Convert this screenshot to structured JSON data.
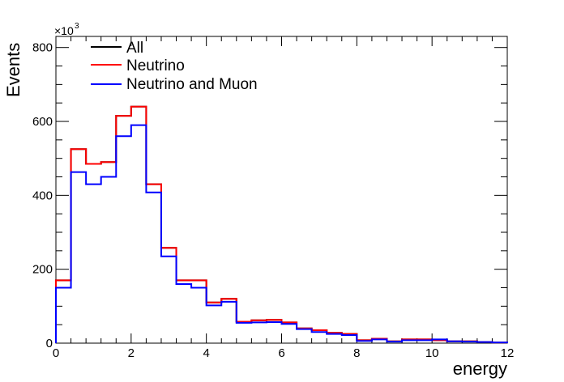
{
  "chart_data": {
    "type": "line",
    "style": "step-histogram",
    "xlabel": "energy",
    "ylabel": "Events",
    "xlim": [
      0,
      12
    ],
    "ylim": [
      0,
      830
    ],
    "y_multiplier_label": "×10",
    "y_multiplier_exponent": "3",
    "x_ticks": [
      "0",
      "2",
      "4",
      "6",
      "8",
      "10",
      "12"
    ],
    "y_ticks": [
      "0",
      "200",
      "400",
      "600",
      "800"
    ],
    "x_tick_values": [
      0,
      2,
      4,
      6,
      8,
      10,
      12
    ],
    "y_tick_values": [
      0,
      200,
      400,
      600,
      800
    ],
    "bin_edges": [
      0,
      0.4,
      0.8,
      1.2,
      1.6,
      2.0,
      2.4,
      2.8,
      3.2,
      3.6,
      4.0,
      4.4,
      4.8,
      5.2,
      5.6,
      6.0,
      6.4,
      6.8,
      7.2,
      7.6,
      8.0,
      8.4,
      8.8,
      9.2,
      9.6,
      10.0,
      10.4,
      10.8,
      11.2,
      11.6,
      12.0
    ],
    "series": [
      {
        "name": "All",
        "color": "#000000",
        "values": [
          170,
          525,
          485,
          490,
          615,
          640,
          430,
          258,
          170,
          170,
          110,
          120,
          58,
          62,
          63,
          56,
          40,
          35,
          28,
          25,
          8,
          12,
          5,
          10,
          10,
          8,
          5,
          5,
          3,
          2
        ]
      },
      {
        "name": "Neutrino",
        "color": "#ff0000",
        "values": [
          170,
          525,
          485,
          490,
          615,
          640,
          430,
          258,
          170,
          170,
          110,
          120,
          58,
          62,
          63,
          56,
          40,
          35,
          28,
          25,
          8,
          12,
          5,
          10,
          10,
          8,
          5,
          5,
          3,
          2
        ]
      },
      {
        "name": "Neutrino and Muon",
        "color": "#0000ff",
        "values": [
          150,
          463,
          430,
          450,
          560,
          590,
          408,
          235,
          160,
          150,
          102,
          112,
          55,
          56,
          57,
          52,
          38,
          30,
          25,
          22,
          6,
          10,
          4,
          8,
          8,
          10,
          5,
          4,
          3,
          2
        ]
      }
    ],
    "legend_position": "top-left",
    "grid": false
  }
}
